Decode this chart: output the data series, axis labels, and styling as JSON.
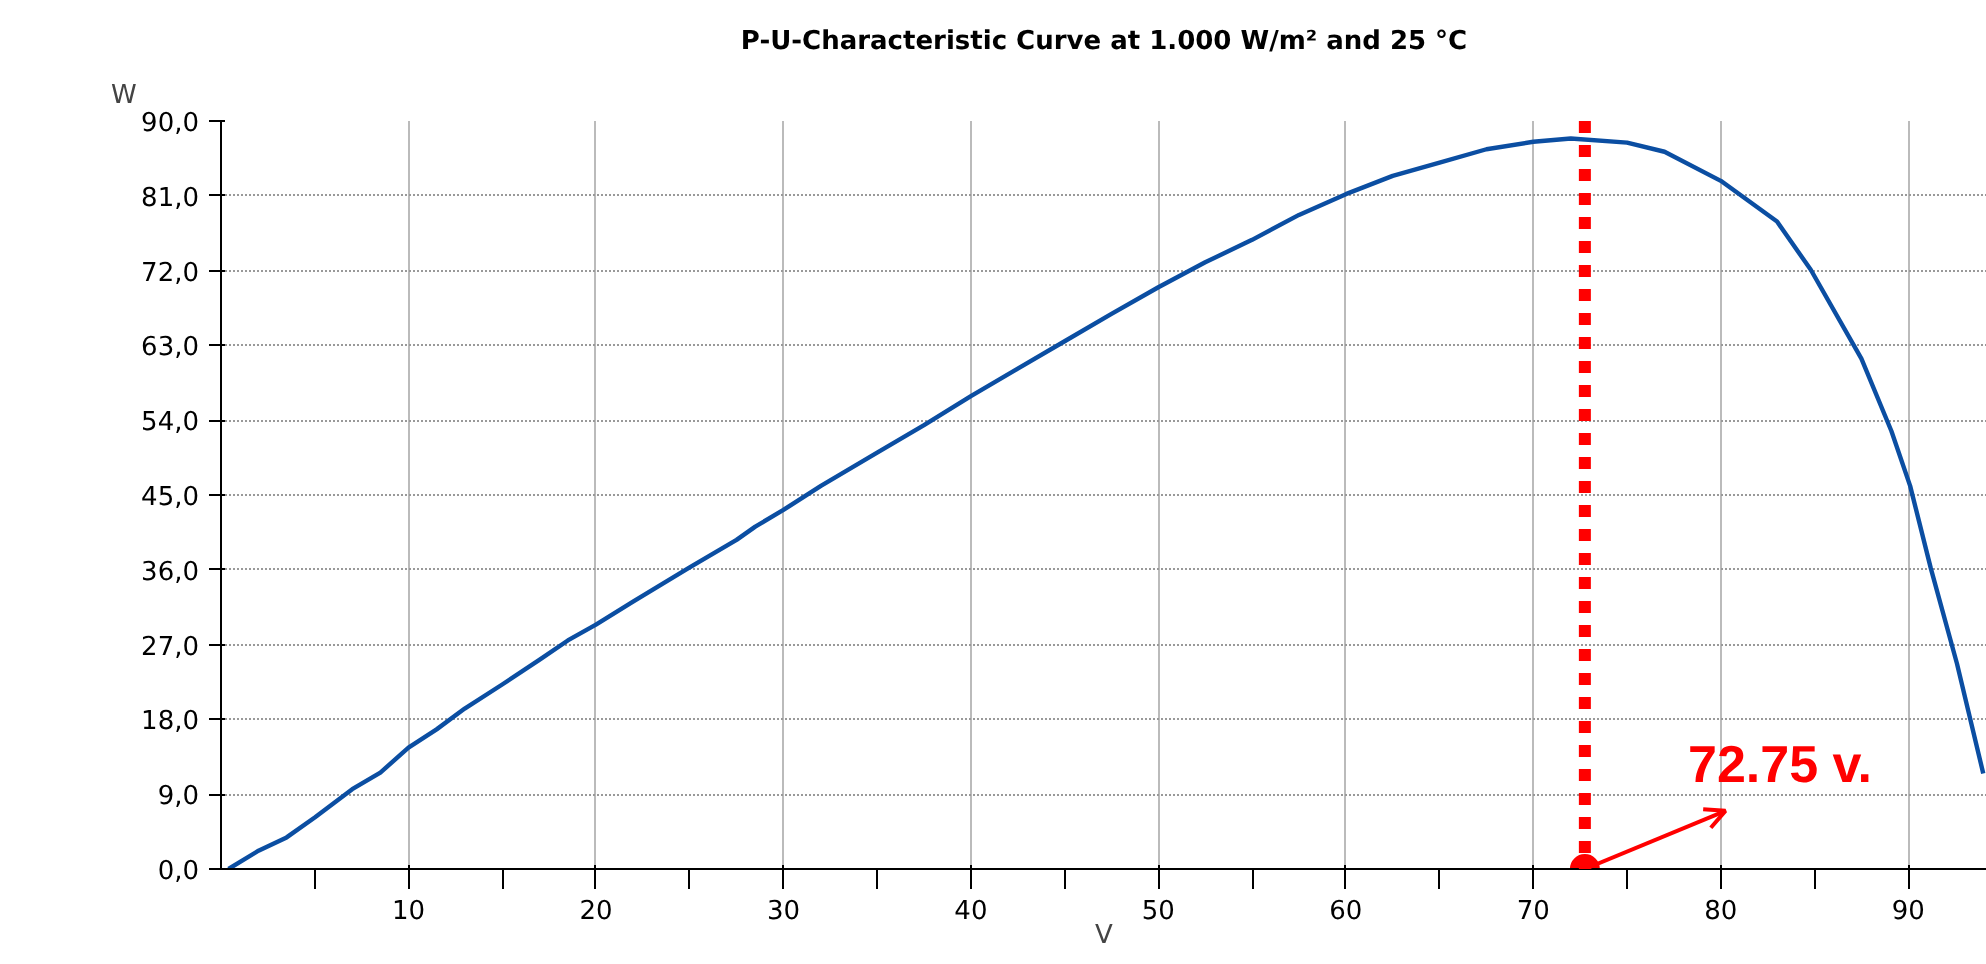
{
  "chart_data": {
    "type": "line",
    "title": "P-U-Characteristic Curve at 1.000 W/m² and 25 °C",
    "xlabel": "V",
    "ylabel": "W",
    "x": [
      0.4,
      2,
      3.5,
      5,
      7,
      8.5,
      10,
      11.5,
      13,
      15,
      17,
      18.5,
      20,
      22,
      25,
      27.5,
      28.5,
      30,
      32,
      35,
      37.5,
      40,
      42.5,
      45,
      47.5,
      50,
      52.5,
      55,
      57.5,
      60,
      62.5,
      65,
      67.5,
      70,
      72,
      75,
      77,
      80,
      83,
      84.8,
      87.5,
      89.1,
      90.1,
      91.2,
      92.6,
      94
    ],
    "series": [
      {
        "color": "#0b4ea2",
        "values": [
          0,
          2.2,
          3.8,
          6.2,
          9.6,
          11.6,
          14.6,
          16.8,
          19.3,
          22.2,
          25.2,
          27.5,
          29.4,
          32.2,
          36.3,
          39.6,
          41.2,
          43.2,
          46.1,
          50.1,
          53.4,
          56.9,
          60.2,
          63.5,
          66.8,
          70.0,
          73.0,
          75.7,
          78.7,
          81.2,
          83.4,
          85.0,
          86.6,
          87.5,
          87.9,
          87.4,
          86.3,
          82.8,
          77.9,
          72.1,
          61.4,
          52.7,
          46.1,
          36.2,
          24.7,
          11.5
        ]
      }
    ],
    "xlim": [
      0,
      94.2
    ],
    "ylim": [
      0,
      90
    ],
    "xticks": [
      {
        "value": 5,
        "label": null
      },
      10,
      {
        "value": 15,
        "label": null
      },
      20,
      {
        "value": 25,
        "label": null
      },
      30,
      {
        "value": 35,
        "label": null
      },
      40,
      {
        "value": 45,
        "label": null
      },
      50,
      {
        "value": 55,
        "label": null
      },
      60,
      {
        "value": 65,
        "label": null
      },
      70,
      {
        "value": 75,
        "label": null
      },
      80,
      {
        "value": 85,
        "label": null
      },
      90
    ],
    "yticks": [
      {
        "value": 0,
        "label": "0,0"
      },
      {
        "value": 9,
        "label": "9,0"
      },
      {
        "value": 18,
        "label": "18,0"
      },
      {
        "value": 27,
        "label": "27,0"
      },
      {
        "value": 36,
        "label": "36,0"
      },
      {
        "value": 45,
        "label": "45,0"
      },
      {
        "value": 54,
        "label": "54,0"
      },
      {
        "value": 63,
        "label": "63,0"
      },
      {
        "value": 72,
        "label": "72,0"
      },
      {
        "value": 81,
        "label": "81,0"
      },
      {
        "value": 90,
        "label": "90,0"
      }
    ],
    "ref_lines": [
      {
        "axis": "x",
        "value": 72.75,
        "color": "#ff0000",
        "line_style": "dotted"
      }
    ],
    "annotations": [
      {
        "text": "72.75 v.",
        "x": 72.75,
        "y": 0
      }
    ],
    "grid": true,
    "marker": "none",
    "line_style": "solid"
  }
}
